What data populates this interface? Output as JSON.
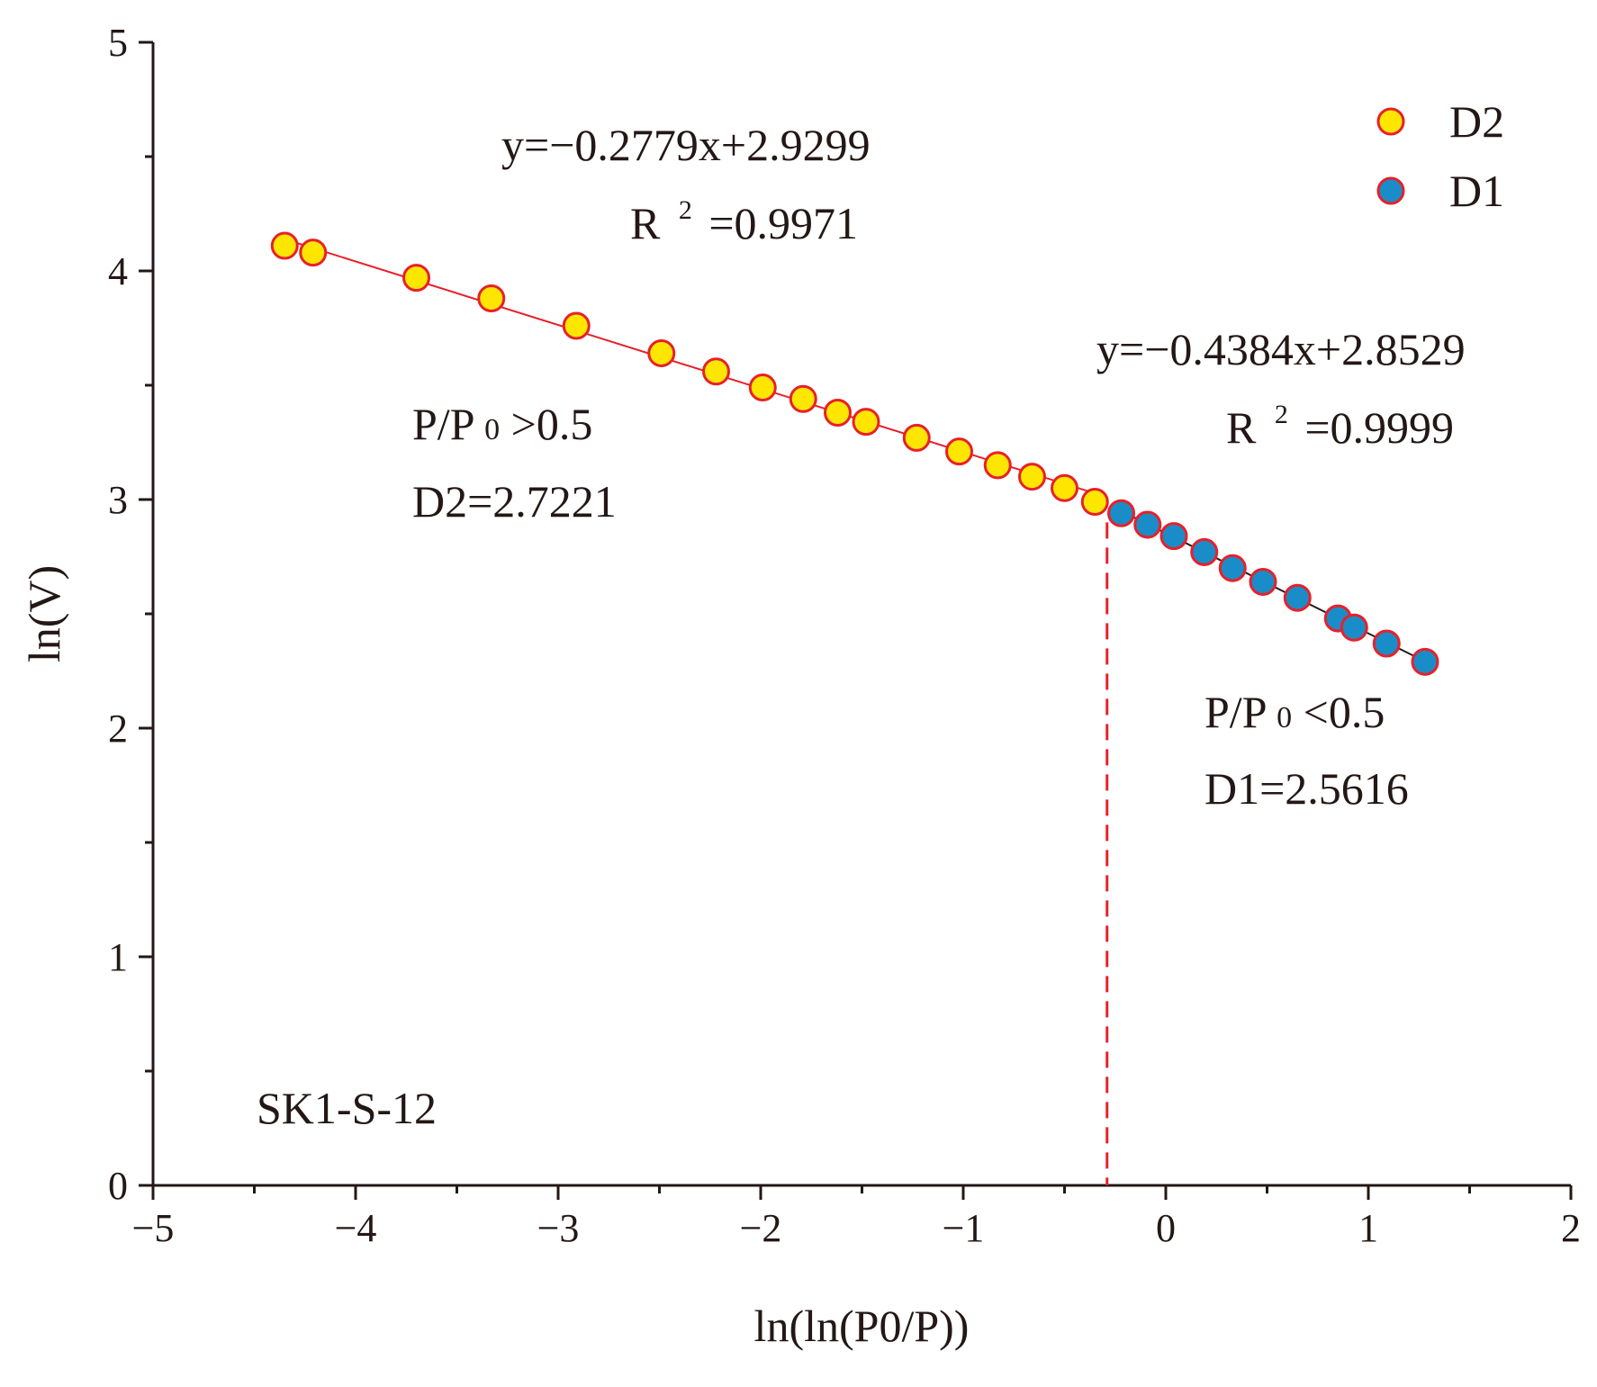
{
  "chart_data": {
    "type": "scatter",
    "title": "",
    "xlabel": "ln(ln(P0/P))",
    "ylabel": "ln(V)",
    "xlim": [
      -5,
      2
    ],
    "ylim": [
      0,
      5
    ],
    "x_ticks": [
      -5,
      -4,
      -3,
      -2,
      -1,
      0,
      1,
      2
    ],
    "x_tick_labels": [
      "−5",
      "−4",
      "−3",
      "−2",
      "−1",
      "0",
      "1",
      "2"
    ],
    "y_ticks": [
      0,
      1,
      2,
      3,
      4,
      5
    ],
    "y_tick_labels": [
      "0",
      "1",
      "2",
      "3",
      "4",
      "5"
    ],
    "grid": false,
    "legend_position": "top-right",
    "sample_label": "SK1-S-12",
    "series": [
      {
        "name": "D2",
        "color": "#FFE600",
        "edge_color": "#E8202A",
        "x": [
          -4.35,
          -4.21,
          -3.7,
          -3.33,
          -2.91,
          -2.49,
          -2.22,
          -1.99,
          -1.79,
          -1.62,
          -1.48,
          -1.23,
          -1.02,
          -0.83,
          -0.66,
          -0.5,
          -0.35
        ],
        "y": [
          4.11,
          4.08,
          3.97,
          3.88,
          3.76,
          3.64,
          3.56,
          3.49,
          3.44,
          3.38,
          3.34,
          3.27,
          3.21,
          3.15,
          3.1,
          3.05,
          2.99
        ]
      },
      {
        "name": "D1",
        "color": "#1A8DC8",
        "edge_color": "#E8202A",
        "x": [
          -0.22,
          -0.09,
          0.04,
          0.19,
          0.33,
          0.48,
          0.65,
          0.85,
          0.93,
          1.09,
          1.28
        ],
        "y": [
          2.94,
          2.89,
          2.84,
          2.77,
          2.7,
          2.64,
          2.57,
          2.48,
          2.44,
          2.37,
          2.29
        ]
      }
    ],
    "fit_lines": [
      {
        "series": "D2",
        "slope": -0.2779,
        "intercept": 2.9299,
        "x_range": [
          -4.35,
          -0.35
        ],
        "color": "#E8202A"
      },
      {
        "series": "D1",
        "slope": -0.4384,
        "intercept": 2.8529,
        "x_range": [
          -0.22,
          1.28
        ],
        "color": "#231815"
      }
    ],
    "divider": {
      "x": -0.29,
      "color": "#E8202A",
      "style": "dashed"
    },
    "annotations": {
      "d2_equation": "y=−0.2779x+2.9299",
      "d2_r2_label": "R",
      "d2_r2_sup": "2",
      "d2_r2_value": "=0.9971",
      "d1_equation": "y=−0.4384x+2.8529",
      "d1_r2_label": "R",
      "d1_r2_sup": "2",
      "d1_r2_value": "=0.9999",
      "d2_range_prefix": "P/P",
      "d2_range_sub": "0",
      "d2_range_suffix": ">0.5",
      "d2_value": "D2=2.7221",
      "d1_range_prefix": "P/P",
      "d1_range_sub": "0",
      "d1_range_suffix": "<0.5",
      "d1_value": "D1=2.5616"
    },
    "legend": [
      {
        "label": "D2",
        "color": "#FFE600"
      },
      {
        "label": "D1",
        "color": "#1A8DC8"
      }
    ]
  }
}
